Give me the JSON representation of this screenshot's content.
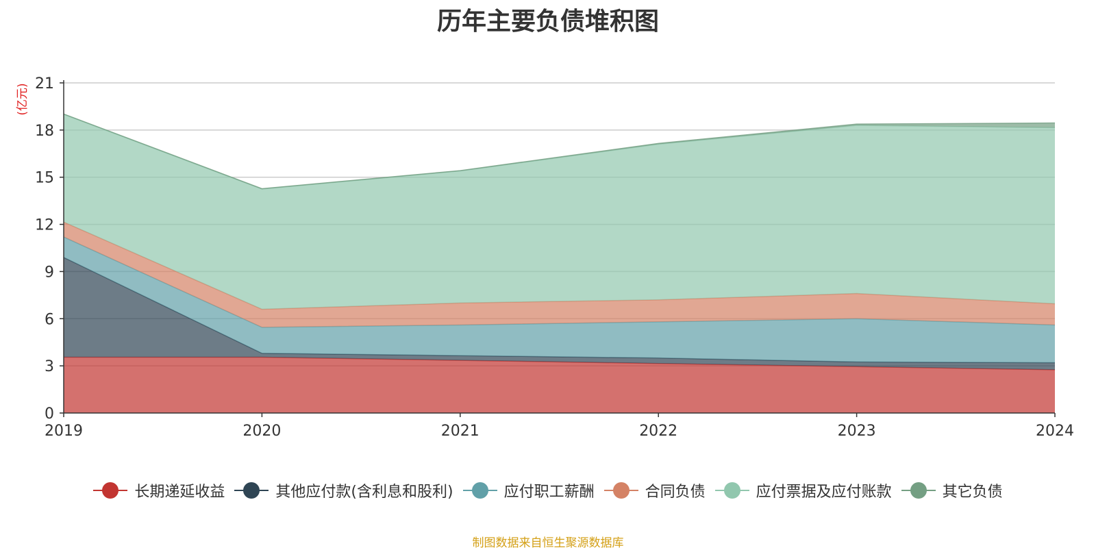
{
  "chart_data": {
    "type": "area",
    "title": "历年主要负债堆积图",
    "ylabel": "(亿元)",
    "xlabel": "",
    "x": [
      "2019",
      "2020",
      "2021",
      "2022",
      "2023",
      "2024"
    ],
    "ylim": [
      0,
      21
    ],
    "yticks": [
      "0",
      "3",
      "6",
      "9",
      "12",
      "15",
      "18",
      "21"
    ],
    "stacked": true,
    "grid": true,
    "legend_position": "bottom",
    "series": [
      {
        "name": "长期递延收益",
        "color": "#c23531",
        "values": [
          3.55,
          3.55,
          3.35,
          3.15,
          2.95,
          2.75
        ]
      },
      {
        "name": "其他应付款(含利息和股利)",
        "color": "#2f4554",
        "values": [
          6.35,
          0.25,
          0.3,
          0.35,
          0.3,
          0.45
        ]
      },
      {
        "name": "应付职工薪酬",
        "color": "#61a0a8",
        "values": [
          1.3,
          1.65,
          1.95,
          2.3,
          2.75,
          2.4
        ]
      },
      {
        "name": "合同负债",
        "color": "#d48265",
        "values": [
          0.95,
          1.15,
          1.4,
          1.4,
          1.6,
          1.35
        ]
      },
      {
        "name": "应付票据及应付账款",
        "color": "#91c7ae",
        "values": [
          6.85,
          7.65,
          8.4,
          9.9,
          10.7,
          11.2
        ]
      },
      {
        "name": "其它负债",
        "color": "#749f83",
        "values": [
          0.02,
          0.02,
          0.02,
          0.05,
          0.08,
          0.3
        ]
      }
    ]
  },
  "source_note": "制图数据来自恒生聚源数据库"
}
